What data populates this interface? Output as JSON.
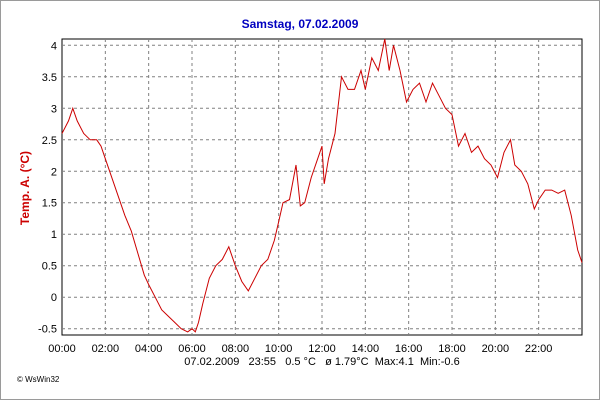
{
  "chart_data": {
    "type": "line",
    "title": "Samstag, 07.02.2009",
    "ylabel": "Temp. A. (°C)",
    "xlabel": "",
    "xlim": [
      0,
      24
    ],
    "ylim": [
      -0.6,
      4.1
    ],
    "grid": true,
    "x_tick_labels": [
      "00:00",
      "02:00",
      "04:00",
      "06:00",
      "08:00",
      "10:00",
      "12:00",
      "14:00",
      "16:00",
      "18:00",
      "20:00",
      "22:00"
    ],
    "y_tick_labels": [
      "-0.5",
      "0",
      "0.5",
      "1",
      "1.5",
      "2",
      "2.5",
      "3",
      "3.5",
      "4"
    ],
    "series": [
      {
        "color": "#cc0000",
        "x": [
          0.0,
          0.3,
          0.5,
          0.7,
          1.0,
          1.3,
          1.6,
          1.8,
          2.0,
          2.3,
          2.6,
          2.9,
          3.2,
          3.5,
          3.8,
          4.0,
          4.3,
          4.6,
          4.9,
          5.2,
          5.5,
          5.8,
          6.0,
          6.15,
          6.3,
          6.5,
          6.8,
          7.1,
          7.4,
          7.7,
          8.0,
          8.3,
          8.6,
          8.9,
          9.2,
          9.5,
          9.8,
          10.0,
          10.2,
          10.5,
          10.8,
          11.0,
          11.2,
          11.5,
          11.8,
          12.0,
          12.1,
          12.3,
          12.6,
          12.9,
          13.2,
          13.5,
          13.8,
          14.0,
          14.3,
          14.6,
          14.9,
          15.1,
          15.3,
          15.6,
          15.9,
          16.2,
          16.5,
          16.8,
          17.1,
          17.4,
          17.7,
          18.0,
          18.3,
          18.6,
          18.9,
          19.2,
          19.5,
          19.8,
          20.1,
          20.4,
          20.7,
          20.9,
          21.2,
          21.5,
          21.8,
          22.0,
          22.3,
          22.6,
          22.9,
          23.2,
          23.5,
          23.8,
          24.0
        ],
        "values": [
          2.6,
          2.8,
          3.0,
          2.8,
          2.6,
          2.5,
          2.5,
          2.4,
          2.2,
          1.9,
          1.6,
          1.3,
          1.05,
          0.7,
          0.35,
          0.2,
          0.0,
          -0.2,
          -0.3,
          -0.4,
          -0.5,
          -0.55,
          -0.5,
          -0.55,
          -0.4,
          -0.1,
          0.3,
          0.5,
          0.6,
          0.8,
          0.5,
          0.25,
          0.1,
          0.3,
          0.5,
          0.6,
          0.9,
          1.2,
          1.5,
          1.55,
          2.1,
          1.45,
          1.5,
          1.9,
          2.2,
          2.4,
          1.8,
          2.2,
          2.6,
          3.5,
          3.3,
          3.3,
          3.6,
          3.3,
          3.8,
          3.6,
          4.1,
          3.6,
          4.0,
          3.6,
          3.1,
          3.3,
          3.4,
          3.1,
          3.4,
          3.2,
          3.0,
          2.9,
          2.4,
          2.6,
          2.3,
          2.4,
          2.2,
          2.1,
          1.9,
          2.3,
          2.5,
          2.1,
          2.0,
          1.8,
          1.4,
          1.55,
          1.7,
          1.7,
          1.65,
          1.7,
          1.3,
          0.75,
          0.55
        ]
      }
    ]
  },
  "status_line": "07.02.2009   23:55   0.5 °C   ø 1.79°C  Max:4.1  Min:-0.6",
  "brand": "© WsWin32"
}
